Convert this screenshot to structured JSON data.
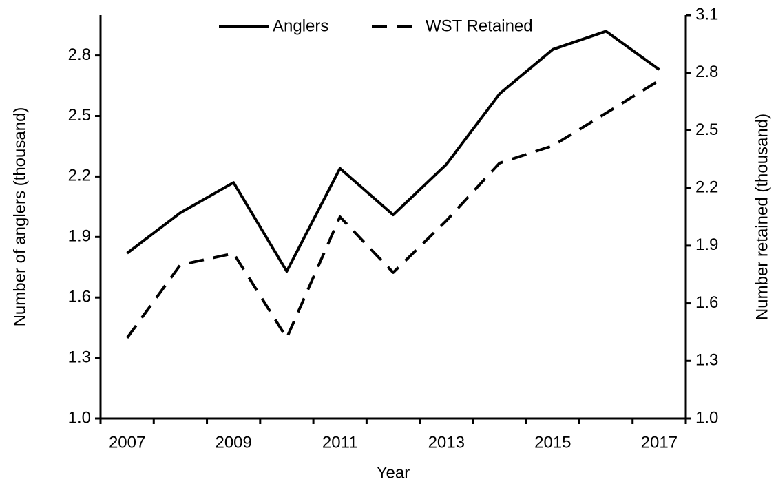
{
  "chart_data": {
    "type": "line",
    "x_label": "Year",
    "y_label": "Number of anglers (thousand)",
    "y2_label": "Number retained (thousand)",
    "categories": [
      "2007",
      null,
      "2009",
      null,
      "2011",
      null,
      "2013",
      null,
      "2015",
      null,
      "2017"
    ],
    "series": [
      {
        "name": "Anglers",
        "color": "#000000",
        "dash": "solid",
        "values": [
          1.82,
          2.02,
          2.17,
          1.73,
          2.24,
          2.01,
          2.26,
          2.61,
          2.83,
          2.92,
          2.73
        ]
      },
      {
        "name": "WST Retained",
        "color": "#000000",
        "dash": "dashed",
        "axis": "y2",
        "values": [
          1.42,
          1.8,
          1.86,
          1.42,
          2.05,
          1.76,
          2.03,
          2.33,
          2.42,
          2.59,
          2.76
        ]
      }
    ],
    "ylim": [
      1.0,
      3.0
    ],
    "yticks": [
      {
        "value": 1.0,
        "label": "1.0"
      },
      1.3,
      1.6,
      1.9,
      2.2,
      2.5,
      2.8
    ],
    "y2lim": [
      1.0,
      3.1
    ],
    "y2ticks": [
      {
        "value": 1.0,
        "label": "1.0"
      },
      1.3,
      1.6,
      1.9,
      2.2,
      2.5,
      2.8,
      3.1
    ],
    "legend": "top"
  }
}
